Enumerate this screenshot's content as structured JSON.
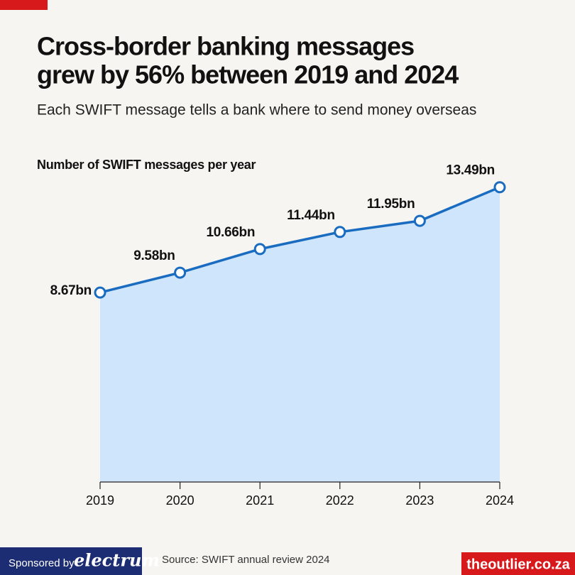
{
  "chart_data": {
    "type": "area",
    "title": [
      "Cross-border banking messages",
      "grew by 56% between 2019 and 2024"
    ],
    "subtitle": "Each SWIFT message tells a bank where to send money overseas",
    "y_label": "Number of SWIFT messages per year",
    "categories": [
      "2019",
      "2020",
      "2021",
      "2022",
      "2023",
      "2024"
    ],
    "values": [
      8.67,
      9.58,
      10.66,
      11.44,
      11.95,
      13.49
    ],
    "value_labels": [
      "8.67bn",
      "9.58bn",
      "10.66bn",
      "11.44bn",
      "11.95bn",
      "13.49bn"
    ],
    "color": "#1a6cc1",
    "fill": "#cfe5fb",
    "ylim": [
      0,
      14
    ],
    "source": "Source: SWIFT annual review 2024"
  },
  "footer": {
    "sponsor": "Sponsored by",
    "sponsor_name": "electrum",
    "brand": "theoutlier.co.za"
  }
}
